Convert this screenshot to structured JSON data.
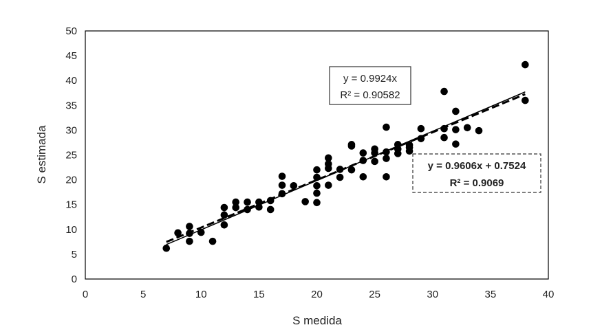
{
  "chart_data": {
    "type": "scatter",
    "title": "",
    "xlabel": "S medida",
    "ylabel": "S estimada",
    "xlim": [
      0,
      40
    ],
    "ylim": [
      0,
      50
    ],
    "xticks": [
      "0",
      "5",
      "10",
      "15",
      "20",
      "25",
      "30",
      "35",
      "40"
    ],
    "yticks": [
      "0",
      "5",
      "10",
      "15",
      "20",
      "25",
      "30",
      "35",
      "40",
      "45",
      "50"
    ],
    "grid": false,
    "series": [
      {
        "points": [
          [
            7,
            6.2
          ],
          [
            8,
            9.3
          ],
          [
            9,
            10.6
          ],
          [
            9,
            9.2
          ],
          [
            9,
            7.6
          ],
          [
            10,
            9.4
          ],
          [
            11,
            7.6
          ],
          [
            12,
            14.4
          ],
          [
            12,
            12.9
          ],
          [
            12,
            10.9
          ],
          [
            13,
            15.5
          ],
          [
            13,
            14.4
          ],
          [
            14,
            15.5
          ],
          [
            14,
            14.0
          ],
          [
            15,
            15.5
          ],
          [
            15,
            14.5
          ],
          [
            16,
            15.8
          ],
          [
            16,
            14.0
          ],
          [
            17,
            20.7
          ],
          [
            17,
            18.9
          ],
          [
            17,
            17.2
          ],
          [
            18,
            18.8
          ],
          [
            19,
            15.6
          ],
          [
            20,
            22.0
          ],
          [
            20,
            20.5
          ],
          [
            20,
            18.8
          ],
          [
            20,
            17.3
          ],
          [
            20,
            15.4
          ],
          [
            21,
            24.4
          ],
          [
            21,
            23.2
          ],
          [
            21,
            22.3
          ],
          [
            21,
            18.9
          ],
          [
            22,
            22.1
          ],
          [
            22,
            20.5
          ],
          [
            23,
            27.1
          ],
          [
            23,
            26.8
          ],
          [
            23,
            22.0
          ],
          [
            24,
            25.4
          ],
          [
            24,
            23.9
          ],
          [
            24,
            20.6
          ],
          [
            25,
            26.2
          ],
          [
            25,
            25.4
          ],
          [
            25,
            23.7
          ],
          [
            26,
            30.6
          ],
          [
            26,
            25.6
          ],
          [
            26,
            24.3
          ],
          [
            26,
            20.6
          ],
          [
            27,
            27.1
          ],
          [
            27,
            26.2
          ],
          [
            27,
            25.3
          ],
          [
            28,
            27.0
          ],
          [
            28,
            26.5
          ],
          [
            28,
            25.8
          ],
          [
            29,
            30.3
          ],
          [
            29,
            28.3
          ],
          [
            31,
            37.8
          ],
          [
            31,
            30.3
          ],
          [
            31,
            28.5
          ],
          [
            32,
            33.8
          ],
          [
            32,
            30.1
          ],
          [
            32,
            27.2
          ],
          [
            33,
            30.5
          ],
          [
            34,
            29.9
          ],
          [
            38,
            43.2
          ],
          [
            38,
            36.0
          ]
        ]
      }
    ],
    "trendlines": [
      {
        "style": "solid",
        "slope": 0.9924,
        "intercept": 0,
        "x_range": [
          7,
          38
        ],
        "equation": "y = 0.9924x",
        "r2": "R² = 0.90582",
        "label_box": "solid"
      },
      {
        "style": "dashed",
        "slope": 0.9606,
        "intercept": 0.7524,
        "x_range": [
          7,
          38
        ],
        "equation": "y = 0.9606x + 0.7524",
        "r2": "R² = 0.9069",
        "label_box": "dashed",
        "bold": true
      }
    ]
  }
}
